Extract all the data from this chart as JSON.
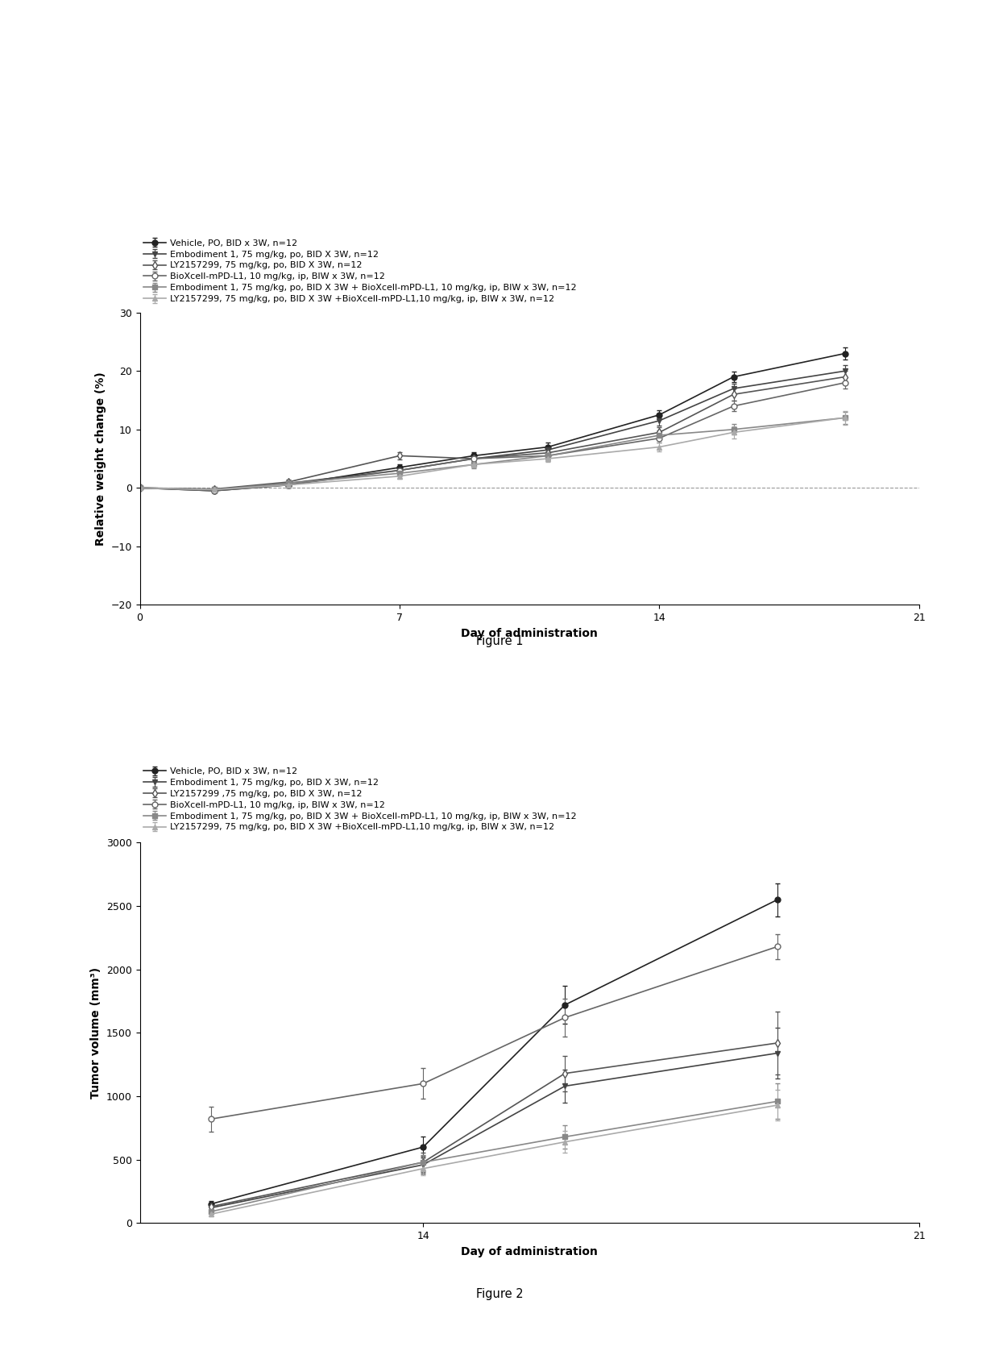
{
  "fig1": {
    "title": "Figure 1",
    "xlabel": "Day of administration",
    "ylabel": "Relative weight change (%)",
    "ylim": [
      -20,
      30
    ],
    "yticks": [
      -20,
      -10,
      0,
      10,
      20,
      30
    ],
    "xlim": [
      0,
      21
    ],
    "xticks": [
      0,
      7,
      14,
      21
    ],
    "series": [
      {
        "label": "Vehicle, PO, BID x 3W, n=12",
        "x": [
          0,
          2,
          4,
          7,
          9,
          11,
          14,
          16,
          19
        ],
        "y": [
          0,
          -0.5,
          0.5,
          3.5,
          5.5,
          7.0,
          12.5,
          19.0,
          23.0
        ],
        "yerr": [
          0.01,
          0.3,
          0.4,
          0.5,
          0.6,
          0.7,
          0.8,
          0.9,
          1.0
        ],
        "color": "#222222",
        "marker": "o",
        "markerfacecolor": "#222222",
        "linestyle": "-",
        "linewidth": 1.2
      },
      {
        "label": "Embodiment 1, 75 mg/kg, po, BID X 3W, n=12",
        "x": [
          0,
          2,
          4,
          7,
          9,
          11,
          14,
          16,
          19
        ],
        "y": [
          0,
          -0.3,
          0.8,
          3.0,
          5.0,
          6.5,
          11.5,
          17.0,
          20.0
        ],
        "yerr": [
          0.01,
          0.3,
          0.4,
          0.5,
          0.5,
          0.6,
          0.8,
          0.9,
          1.0
        ],
        "color": "#444444",
        "marker": "v",
        "markerfacecolor": "#444444",
        "linestyle": "-",
        "linewidth": 1.2
      },
      {
        "label": "LY2157299, 75 mg/kg, po, BID X 3W, n=12",
        "x": [
          0,
          2,
          4,
          7,
          9,
          11,
          14,
          16,
          19
        ],
        "y": [
          0,
          -0.2,
          1.0,
          5.5,
          5.0,
          6.0,
          9.5,
          16.0,
          19.0
        ],
        "yerr": [
          0.01,
          0.3,
          0.4,
          0.6,
          0.6,
          0.7,
          0.9,
          1.0,
          1.0
        ],
        "color": "#555555",
        "marker": "d",
        "markerfacecolor": "white",
        "linestyle": "-",
        "linewidth": 1.2
      },
      {
        "label": "BioXcell-mPD-L1, 10 mg/kg, ip, BIW x 3W, n=12",
        "x": [
          0,
          2,
          4,
          7,
          9,
          11,
          14,
          16,
          19
        ],
        "y": [
          0,
          -0.5,
          0.5,
          3.0,
          5.0,
          5.5,
          8.5,
          14.0,
          18.0
        ],
        "yerr": [
          0.01,
          0.3,
          0.4,
          0.5,
          0.6,
          0.6,
          0.8,
          0.9,
          1.0
        ],
        "color": "#666666",
        "marker": "o",
        "markerfacecolor": "white",
        "linestyle": "-",
        "linewidth": 1.2
      },
      {
        "label": "Embodiment 1, 75 mg/kg, po, BID X 3W + BioXcell-mPD-L1, 10 mg/kg, ip, BIW x 3W, n=12",
        "x": [
          0,
          2,
          4,
          7,
          9,
          11,
          14,
          16,
          19
        ],
        "y": [
          0,
          -0.3,
          0.8,
          2.5,
          4.0,
          5.5,
          9.0,
          10.0,
          12.0
        ],
        "yerr": [
          0.01,
          0.3,
          0.4,
          0.5,
          0.6,
          0.7,
          0.8,
          0.9,
          1.0
        ],
        "color": "#888888",
        "marker": "s",
        "markerfacecolor": "#888888",
        "linestyle": "-",
        "linewidth": 1.2
      },
      {
        "label": "LY2157299, 75 mg/kg, po, BID X 3W +BioXcell-mPD-L1,10 mg/kg, ip, BIW x 3W, n=12",
        "x": [
          0,
          2,
          4,
          7,
          9,
          11,
          14,
          16,
          19
        ],
        "y": [
          0,
          -0.3,
          0.5,
          2.0,
          4.0,
          5.0,
          7.0,
          9.5,
          12.0
        ],
        "yerr": [
          0.01,
          0.3,
          0.3,
          0.5,
          0.5,
          0.6,
          0.8,
          1.0,
          1.2
        ],
        "color": "#aaaaaa",
        "marker": "^",
        "markerfacecolor": "#aaaaaa",
        "linestyle": "-",
        "linewidth": 1.2
      }
    ]
  },
  "fig2": {
    "title": "Figure 2",
    "xlabel": "Day of administration",
    "ylabel": "Tumor volume (mm³)",
    "ylim": [
      0,
      3000
    ],
    "yticks": [
      0,
      500,
      1000,
      1500,
      2000,
      2500,
      3000
    ],
    "xlim": [
      10,
      21
    ],
    "xticks": [
      14,
      21
    ],
    "series": [
      {
        "label": "Vehicle, PO, BID x 3W, n=12",
        "x": [
          11,
          14,
          16,
          19
        ],
        "y": [
          150,
          600,
          1720,
          2550
        ],
        "yerr": [
          25,
          80,
          150,
          130
        ],
        "color": "#222222",
        "marker": "o",
        "markerfacecolor": "#222222",
        "linestyle": "-",
        "linewidth": 1.2
      },
      {
        "label": "Embodiment 1, 75 mg/kg, po, BID X 3W, n=12",
        "x": [
          11,
          14,
          16,
          19
        ],
        "y": [
          120,
          460,
          1080,
          1340
        ],
        "yerr": [
          20,
          70,
          130,
          200
        ],
        "color": "#444444",
        "marker": "v",
        "markerfacecolor": "#444444",
        "linestyle": "-",
        "linewidth": 1.2
      },
      {
        "label": "LY2157299 ,75 mg/kg, po, BID X 3W, n=12",
        "x": [
          11,
          14,
          16,
          19
        ],
        "y": [
          130,
          480,
          1180,
          1420
        ],
        "yerr": [
          20,
          75,
          140,
          250
        ],
        "color": "#555555",
        "marker": "d",
        "markerfacecolor": "white",
        "linestyle": "-",
        "linewidth": 1.2
      },
      {
        "label": "BioXcell-mPD-L1, 10 mg/kg, ip, BIW x 3W, n=12",
        "x": [
          11,
          14,
          16,
          19
        ],
        "y": [
          820,
          1100,
          1620,
          2180
        ],
        "yerr": [
          100,
          120,
          150,
          100
        ],
        "color": "#666666",
        "marker": "o",
        "markerfacecolor": "white",
        "linestyle": "-",
        "linewidth": 1.2
      },
      {
        "label": "Embodiment 1, 75 mg/kg, po, BID X 3W + BioXcell-mPD-L1, 10 mg/kg, ip, BIW x 3W, n=12",
        "x": [
          11,
          14,
          16,
          19
        ],
        "y": [
          90,
          480,
          680,
          960
        ],
        "yerr": [
          15,
          55,
          90,
          140
        ],
        "color": "#888888",
        "marker": "s",
        "markerfacecolor": "#888888",
        "linestyle": "-",
        "linewidth": 1.2
      },
      {
        "label": "LY2157299, 75 mg/kg, po, BID X 3W +BioXcell-mPD-L1,10 mg/kg, ip, BIW x 3W, n=12",
        "x": [
          11,
          14,
          16,
          19
        ],
        "y": [
          70,
          430,
          640,
          930
        ],
        "yerr": [
          15,
          50,
          85,
          120
        ],
        "color": "#aaaaaa",
        "marker": "^",
        "markerfacecolor": "#aaaaaa",
        "linestyle": "-",
        "linewidth": 1.2
      }
    ]
  },
  "background_color": "#ffffff",
  "legend_fontsize": 8.0,
  "axis_fontsize": 10,
  "tick_fontsize": 9,
  "marker_size": 5
}
